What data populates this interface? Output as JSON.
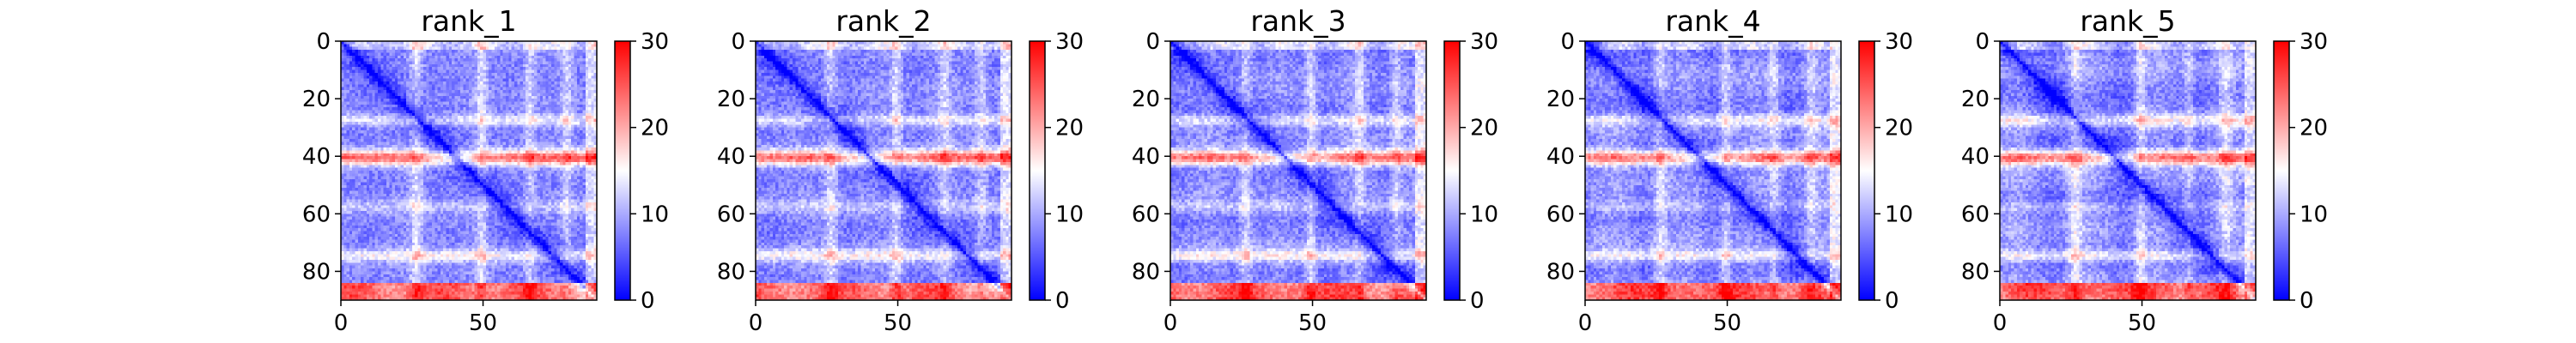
{
  "chart_data": {
    "type": "heatmap",
    "colormap": "bwr",
    "matrix_size": 90,
    "panels": [
      {
        "title": "rank_1"
      },
      {
        "title": "rank_2"
      },
      {
        "title": "rank_3"
      },
      {
        "title": "rank_4"
      },
      {
        "title": "rank_5"
      }
    ],
    "x_ticks": [
      0,
      50
    ],
    "y_ticks": [
      0,
      20,
      40,
      60,
      80
    ],
    "colorbar": {
      "min": 0,
      "max": 30,
      "ticks": [
        0,
        10,
        20,
        30
      ]
    },
    "xlim": [
      0,
      90
    ],
    "ylim": [
      90,
      0
    ]
  }
}
